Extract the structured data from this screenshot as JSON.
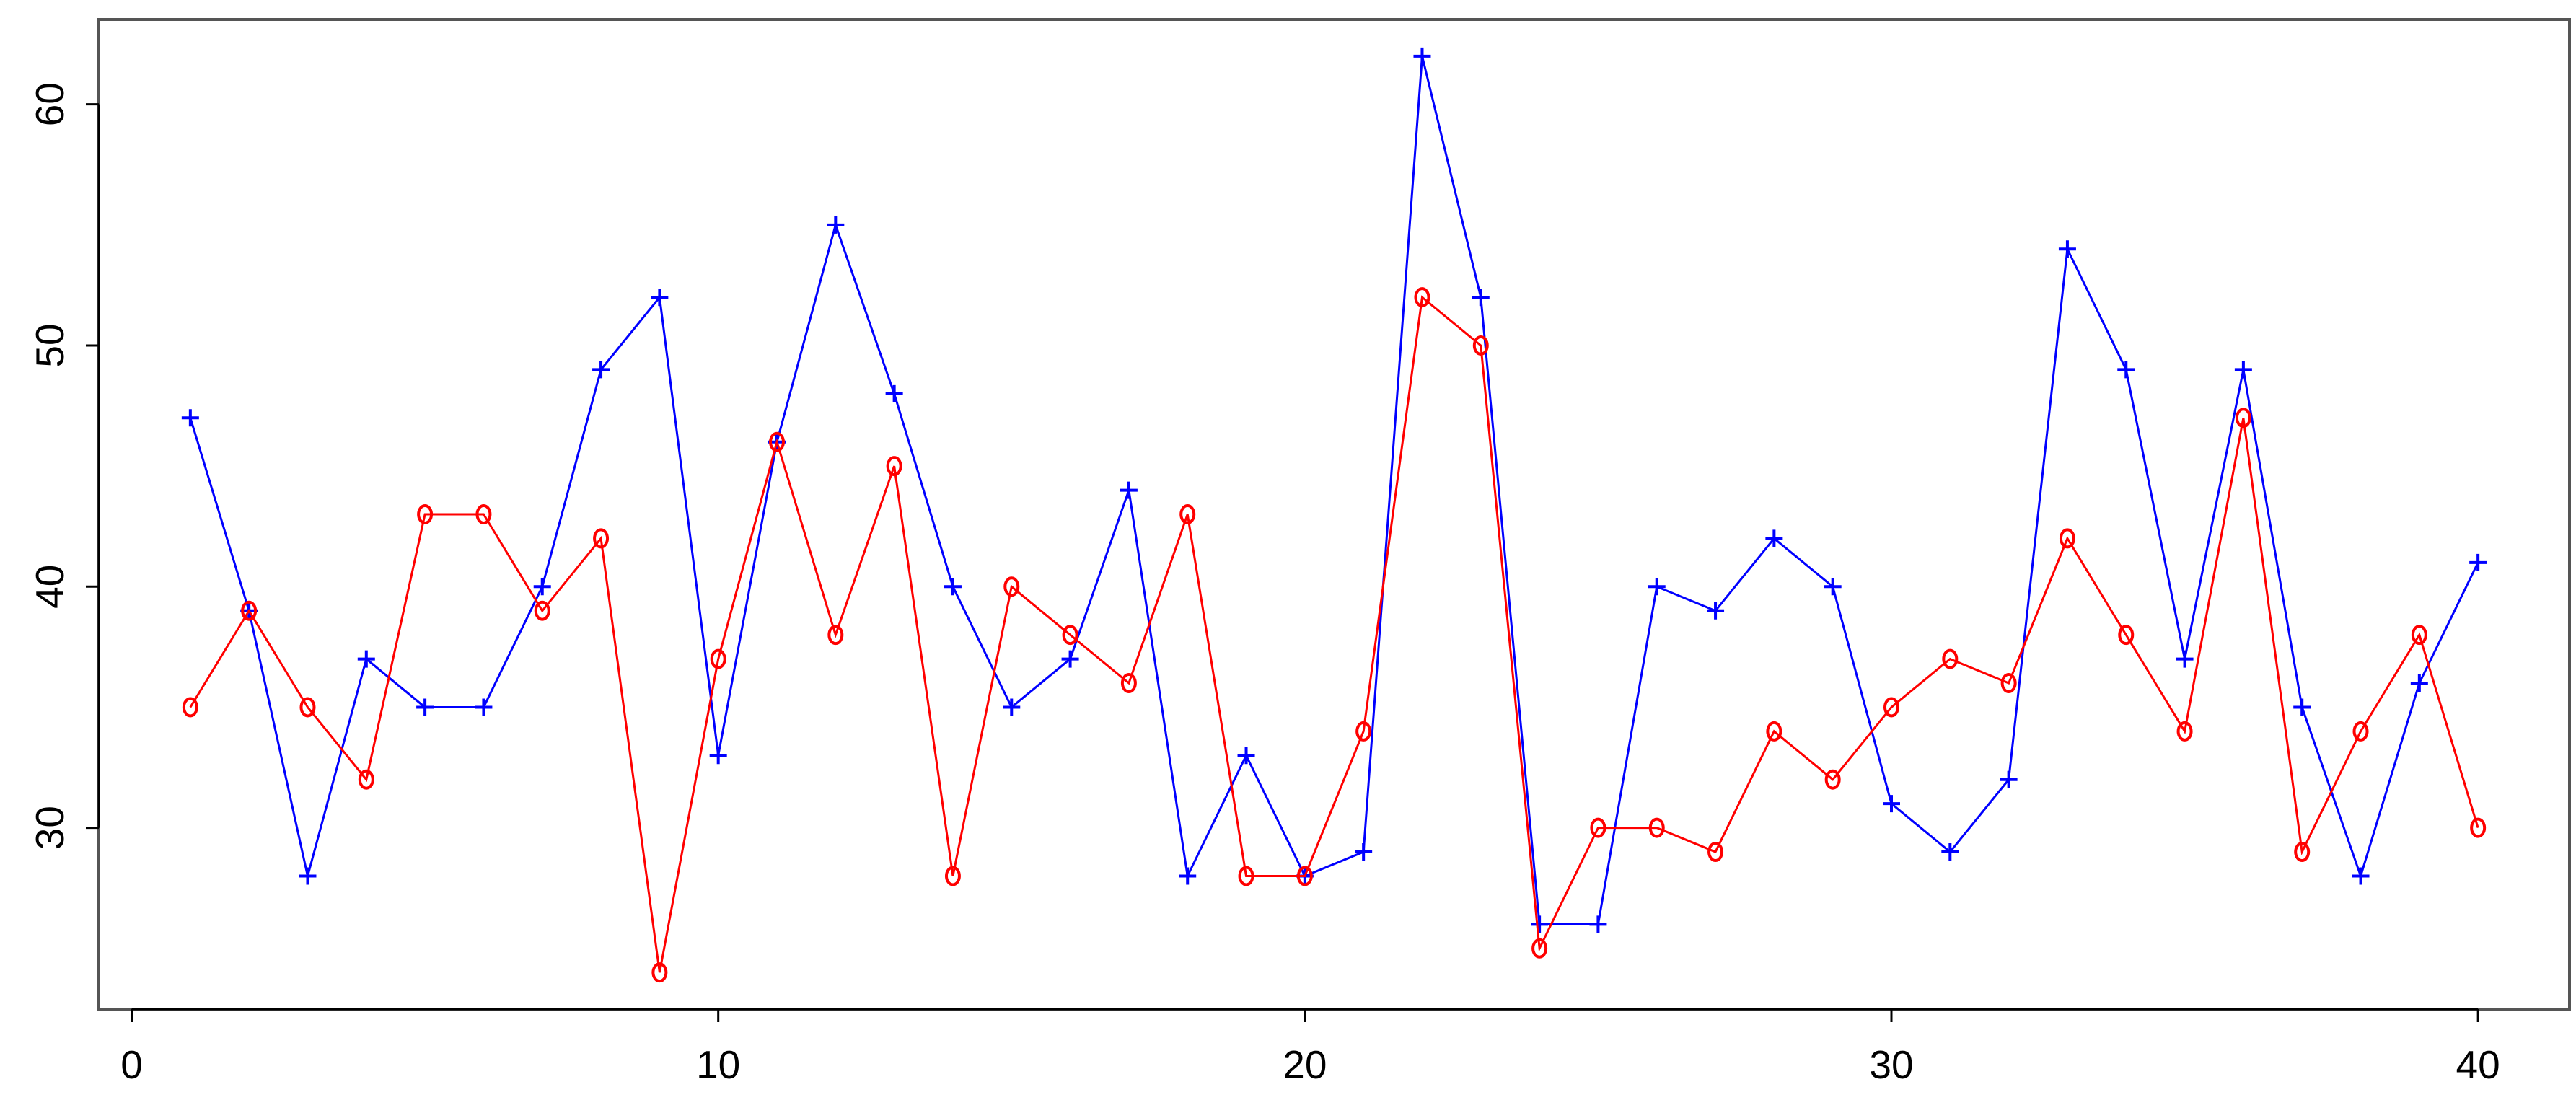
{
  "chart_data": {
    "type": "line",
    "x": [
      1,
      2,
      3,
      4,
      5,
      6,
      7,
      8,
      9,
      10,
      11,
      12,
      13,
      14,
      15,
      16,
      17,
      18,
      19,
      20,
      21,
      22,
      23,
      24,
      25,
      26,
      27,
      28,
      29,
      30,
      31,
      32,
      33,
      34,
      35,
      36,
      37,
      38,
      39,
      40
    ],
    "series": [
      {
        "color": "#0000ff",
        "marker": "plus",
        "values": [
          47,
          39,
          28,
          37,
          35,
          35,
          40,
          49,
          52,
          33,
          46,
          55,
          48,
          40,
          35,
          37,
          44,
          28,
          33,
          28,
          29,
          62,
          52,
          26,
          26,
          40,
          39,
          42,
          40,
          31,
          29,
          32,
          54,
          49,
          37,
          49,
          35,
          28,
          36,
          41
        ]
      },
      {
        "color": "#ff0000",
        "marker": "circle",
        "values": [
          35,
          39,
          35,
          32,
          43,
          43,
          39,
          42,
          24,
          37,
          46,
          38,
          45,
          28,
          40,
          38,
          36,
          43,
          28,
          28,
          34,
          52,
          50,
          25,
          30,
          30,
          29,
          34,
          32,
          35,
          37,
          36,
          42,
          38,
          34,
          47,
          29,
          34,
          38,
          30
        ]
      }
    ],
    "xlim": [
      -0.56,
      41.56
    ],
    "ylim": [
      22.48,
      63.52
    ],
    "xticks": [
      0,
      10,
      20,
      30,
      40
    ],
    "yticks": [
      30,
      40,
      50,
      60
    ]
  }
}
